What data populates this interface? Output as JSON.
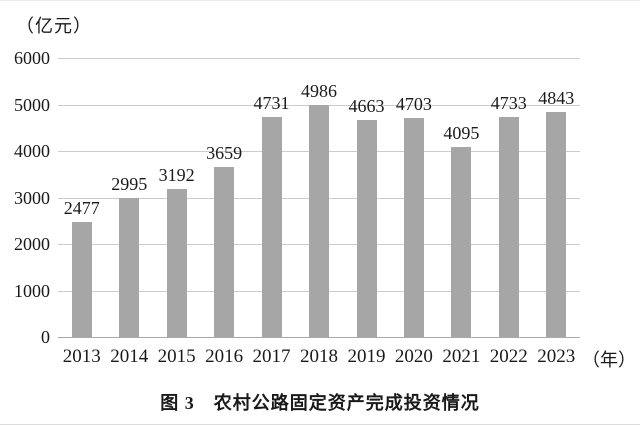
{
  "figure": {
    "y_unit_label": "（亿元）",
    "x_unit_label": "（年）",
    "caption": "图 3　农村公路固定资产完成投资情况"
  },
  "chart_data": {
    "type": "bar",
    "title": "图 3 农村公路固定资产完成投资情况",
    "categories": [
      "2013",
      "2014",
      "2015",
      "2016",
      "2017",
      "2018",
      "2019",
      "2020",
      "2021",
      "2022",
      "2023"
    ],
    "values": [
      2477,
      2995,
      3192,
      3659,
      4731,
      4986,
      4663,
      4703,
      4095,
      4733,
      4843
    ],
    "xlabel": "（年）",
    "ylabel": "（亿元）",
    "ylim": [
      0,
      6000
    ],
    "yticks": [
      0,
      1000,
      2000,
      3000,
      4000,
      5000,
      6000
    ],
    "grid": true,
    "legend": "none",
    "bar_color": "#a6a6a6",
    "gridline_color": "#cccccc",
    "axis_color": "#a9a9a9",
    "text_color": "#1a1a1a"
  }
}
